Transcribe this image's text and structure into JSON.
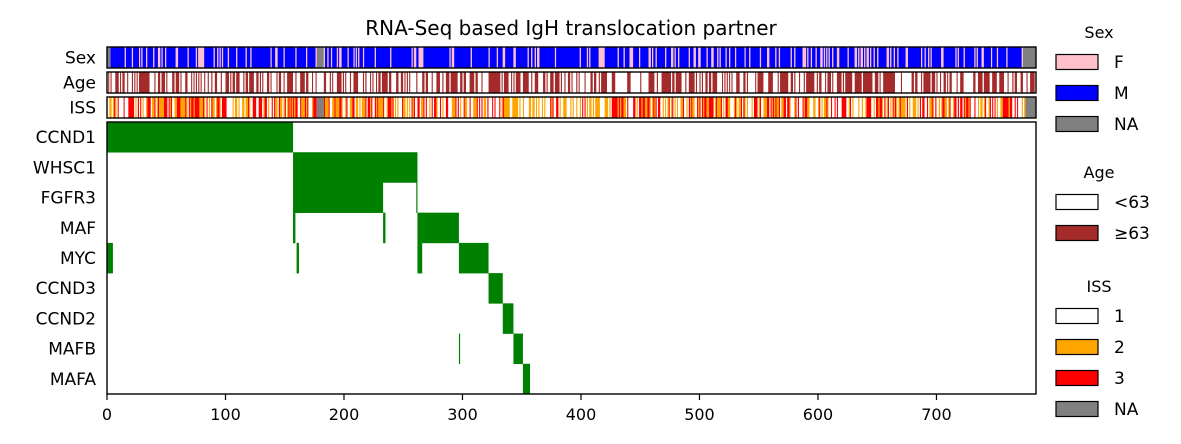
{
  "chart_data": {
    "type": "heatmap",
    "title": "RNA-Seq based IgH translocation partner",
    "xlim": [
      0,
      784
    ],
    "x_ticks": [
      0,
      100,
      200,
      300,
      400,
      500,
      600,
      700
    ],
    "annotation_tracks": [
      {
        "name": "Sex",
        "legend_title": "Sex",
        "categories": [
          {
            "label": "F",
            "color": "#ffc0cb"
          },
          {
            "label": "M",
            "color": "#0000ff"
          },
          {
            "label": "NA",
            "color": "#808080"
          }
        ]
      },
      {
        "name": "Age",
        "legend_title": "Age",
        "categories": [
          {
            "label": "<63",
            "color": "#ffffff"
          },
          {
            "label": "≥63",
            "color": "#a52a2a"
          }
        ]
      },
      {
        "name": "ISS",
        "legend_title": "ISS",
        "categories": [
          {
            "label": "1",
            "color": "#ffffff"
          },
          {
            "label": "2",
            "color": "#ffa500"
          },
          {
            "label": "3",
            "color": "#ff0000"
          },
          {
            "label": "NA",
            "color": "#808080"
          }
        ]
      }
    ],
    "translocation_color": "#008000",
    "partners": [
      {
        "name": "CCND1",
        "spans": [
          [
            0,
            157
          ]
        ]
      },
      {
        "name": "WHSC1",
        "spans": [
          [
            157,
            262
          ]
        ]
      },
      {
        "name": "FGFR3",
        "spans": [
          [
            157,
            233
          ],
          [
            261,
            262
          ]
        ]
      },
      {
        "name": "MAF",
        "spans": [
          [
            157,
            159
          ],
          [
            233,
            235
          ],
          [
            262,
            297
          ]
        ]
      },
      {
        "name": "MYC",
        "spans": [
          [
            0,
            5
          ],
          [
            160,
            162
          ],
          [
            262,
            266
          ],
          [
            297,
            322
          ]
        ]
      },
      {
        "name": "CCND3",
        "spans": [
          [
            322,
            334
          ]
        ]
      },
      {
        "name": "CCND2",
        "spans": [
          [
            334,
            343
          ]
        ]
      },
      {
        "name": "MAFB",
        "spans": [
          [
            297,
            298
          ],
          [
            343,
            351
          ]
        ]
      },
      {
        "name": "MAFA",
        "spans": [
          [
            351,
            357
          ]
        ]
      }
    ]
  }
}
